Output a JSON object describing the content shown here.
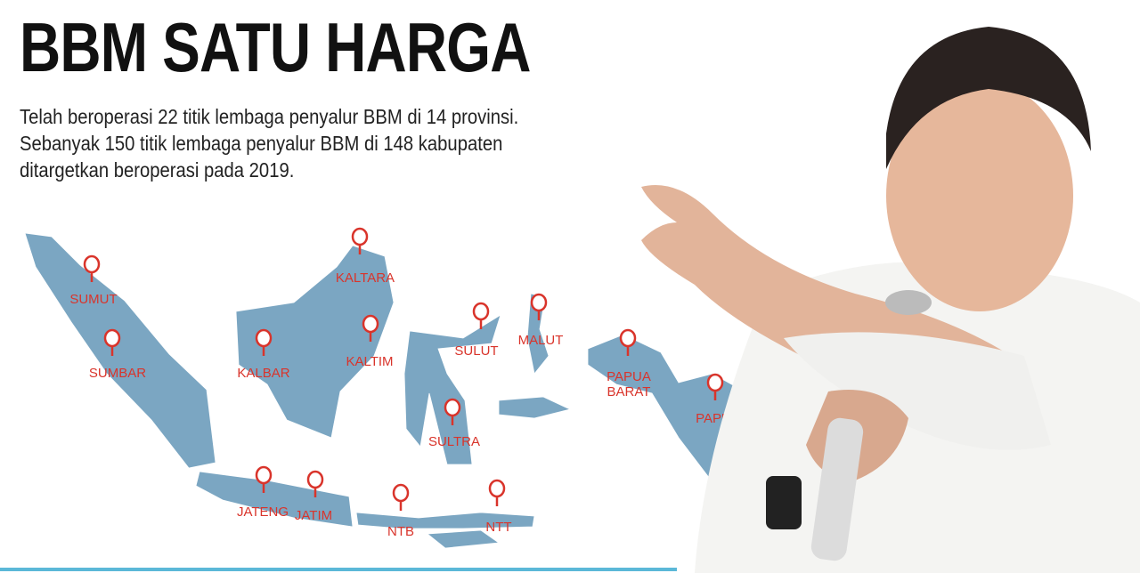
{
  "title": "BBM SATU HARGA",
  "description": [
    "Telah beroperasi 22 titik lembaga penyalur BBM di 14 provinsi.",
    "Sebanyak 150 titik lembaga penyalur BBM di 148 kabupaten",
    "ditargetkan beroperasi pada 2019."
  ],
  "colors": {
    "map": "#7ba6c2",
    "pin": "#d9342b",
    "accent_line": "#5bb8d8"
  },
  "map": {
    "icon": "map-pin-icon",
    "locations": [
      {
        "label": "SUMUT"
      },
      {
        "label": "SUMBAR"
      },
      {
        "label": "KALBAR"
      },
      {
        "label": "KALTARA"
      },
      {
        "label": "KALTIM"
      },
      {
        "label": "SULUT"
      },
      {
        "label": "MALUT"
      },
      {
        "label": "PAPUA BARAT",
        "lines": [
          "PAPUA",
          "BARAT"
        ]
      },
      {
        "label": "PAPUA"
      },
      {
        "label": "SULTRA"
      },
      {
        "label": "JATENG"
      },
      {
        "label": "JATIM"
      },
      {
        "label": "NTB"
      },
      {
        "label": "NTT"
      }
    ]
  }
}
